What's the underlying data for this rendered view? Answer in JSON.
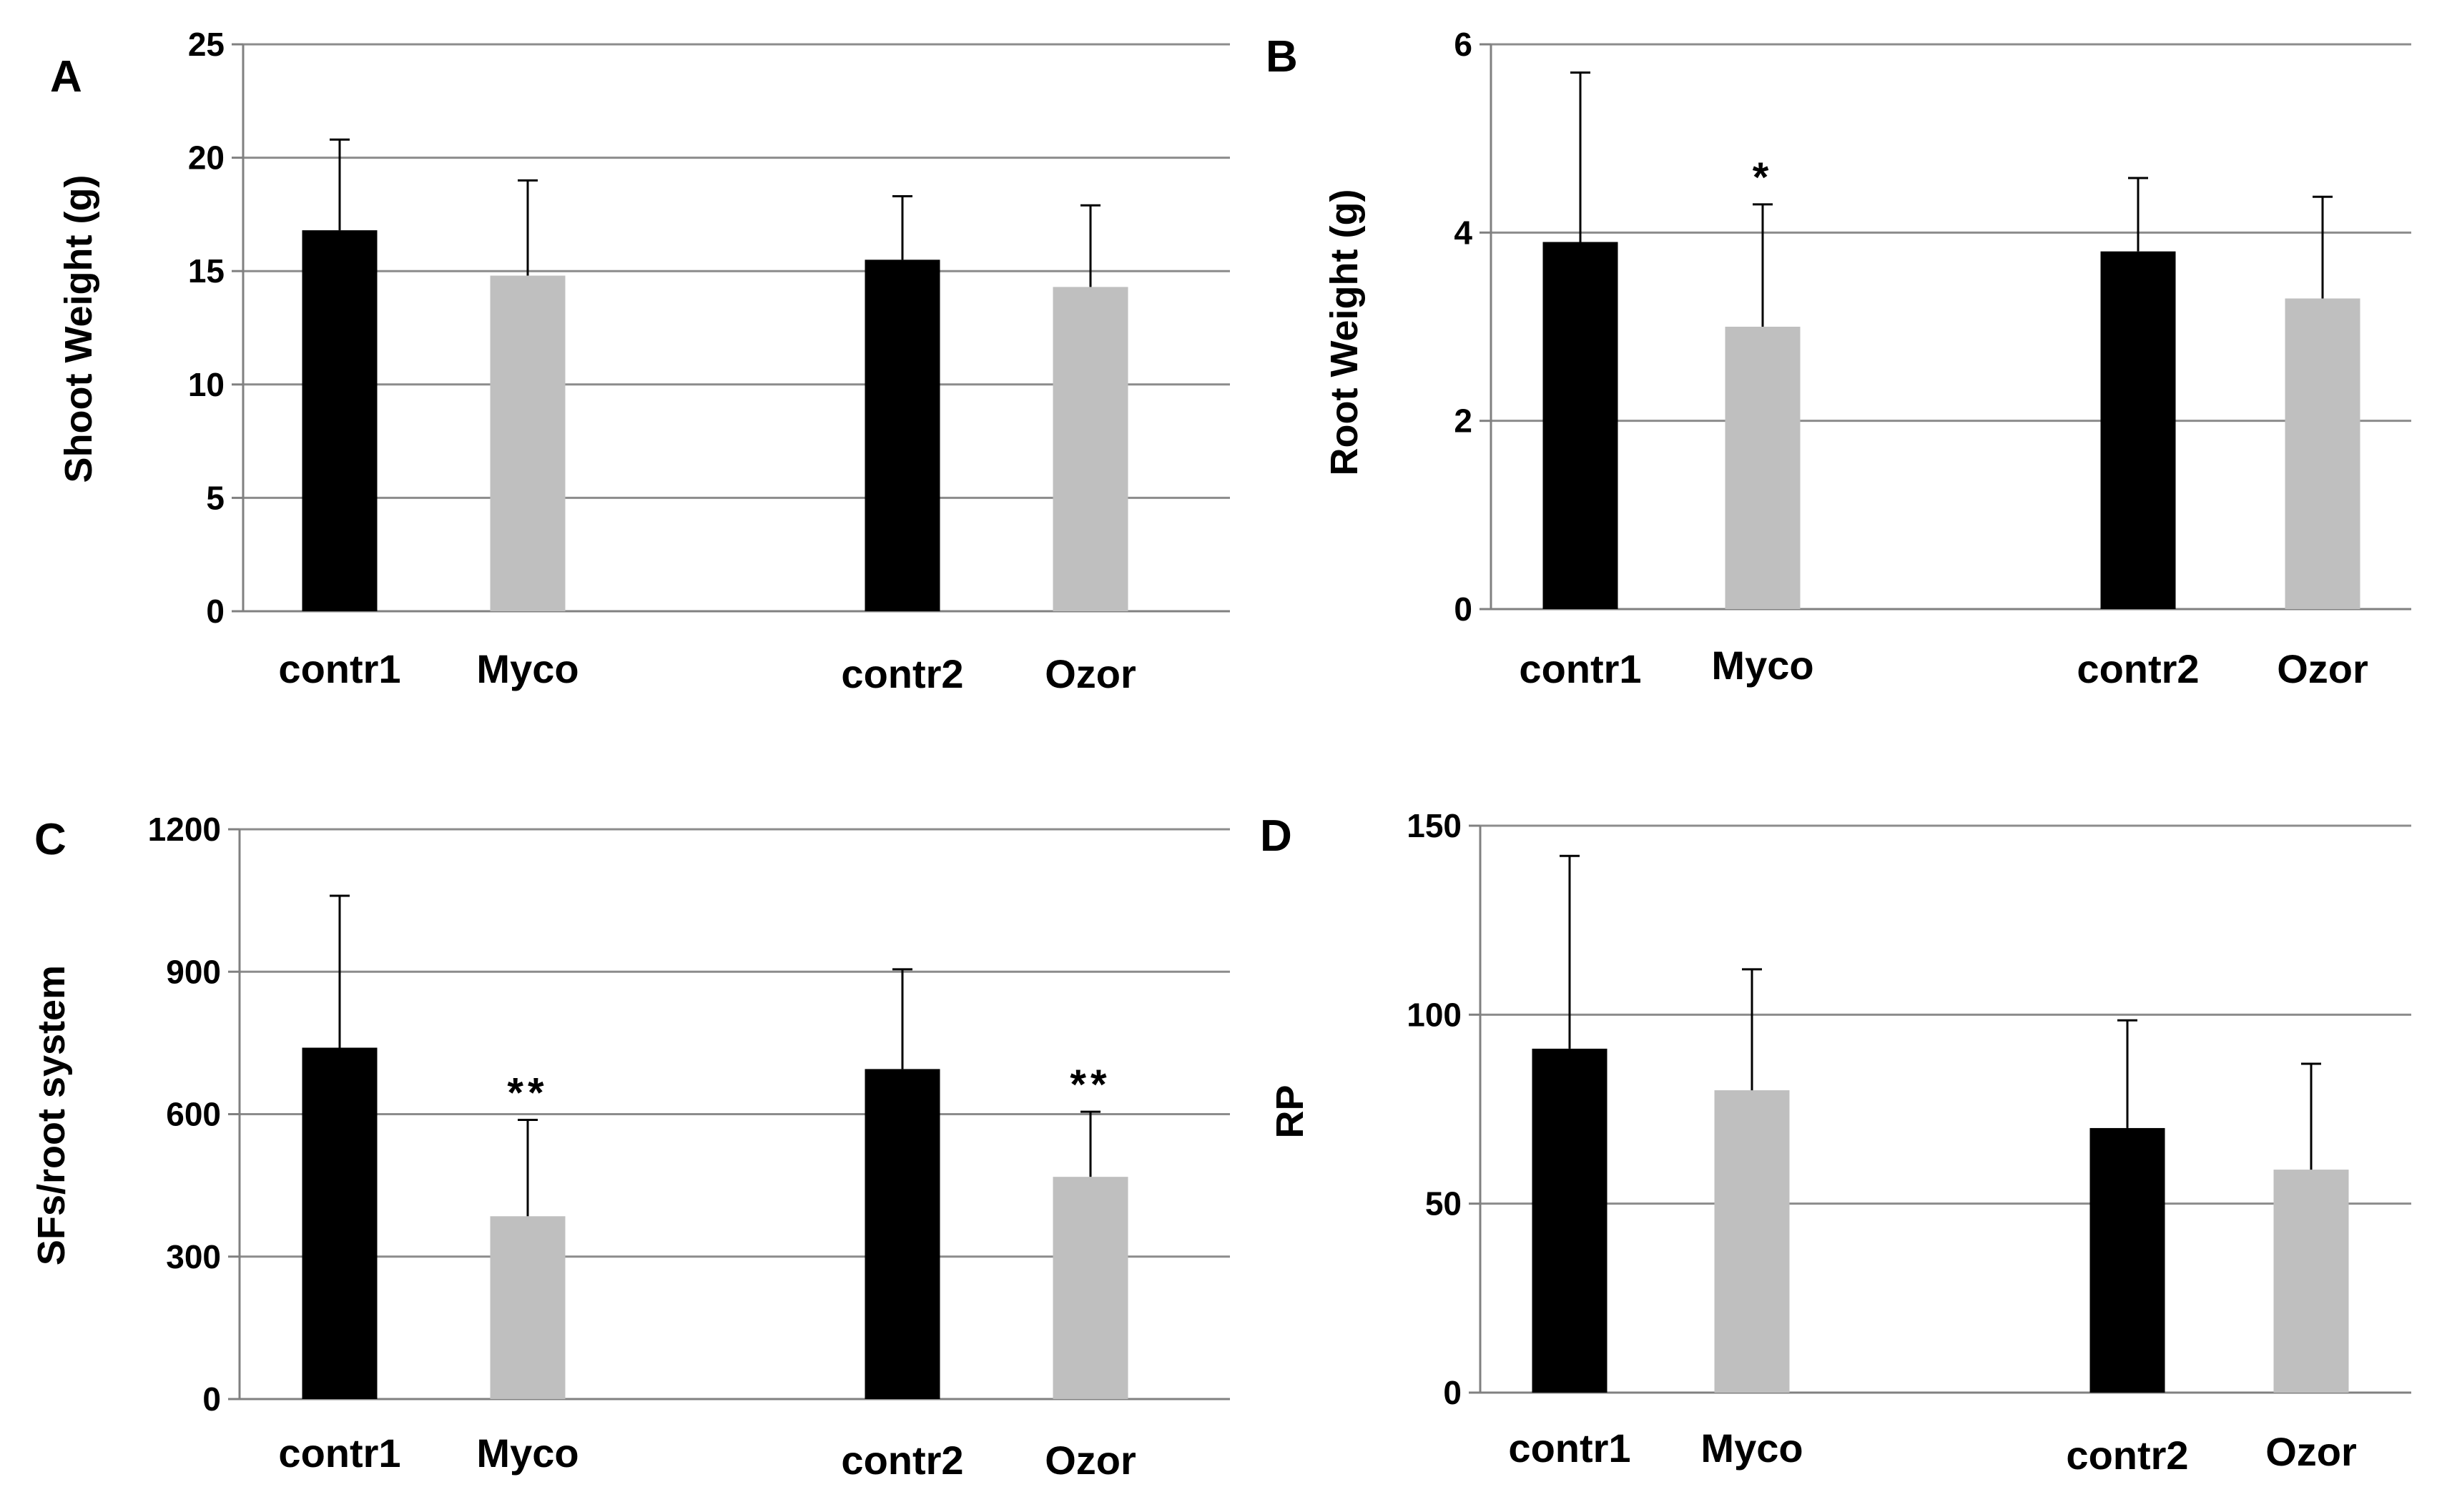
{
  "chart_data": [
    {
      "type": "bar",
      "panel": "A",
      "ylabel": "Shoot Weight (g)",
      "ylim": [
        0,
        25
      ],
      "yticks": [
        0,
        5,
        10,
        15,
        20,
        25
      ],
      "grid": true,
      "categories": [
        "contr1",
        "Myco",
        "contr2",
        "Ozor"
      ],
      "values": [
        16.8,
        14.8,
        15.5,
        14.3
      ],
      "errors": [
        4.0,
        4.2,
        2.8,
        3.6
      ],
      "significance": [
        "",
        "",
        "",
        ""
      ],
      "colors": [
        "#000000",
        "#bfbfbf",
        "#000000",
        "#bfbfbf"
      ]
    },
    {
      "type": "bar",
      "panel": "B",
      "ylabel": "Root Weight (g)",
      "ylim": [
        0,
        6
      ],
      "yticks": [
        0,
        2,
        4,
        6
      ],
      "grid": true,
      "categories": [
        "contr1",
        "Myco",
        "contr2",
        "Ozor"
      ],
      "values": [
        3.9,
        3.0,
        3.8,
        3.3
      ],
      "errors": [
        1.8,
        1.3,
        0.78,
        1.08
      ],
      "significance": [
        "",
        "*",
        "",
        ""
      ],
      "colors": [
        "#000000",
        "#bfbfbf",
        "#000000",
        "#bfbfbf"
      ]
    },
    {
      "type": "bar",
      "panel": "C",
      "ylabel": "SFs/root system",
      "ylim": [
        0,
        1200
      ],
      "yticks": [
        0,
        300,
        600,
        900,
        1200
      ],
      "grid": true,
      "categories": [
        "contr1",
        "Myco",
        "contr2",
        "Ozor"
      ],
      "values": [
        740,
        385,
        695,
        468
      ],
      "errors": [
        320,
        203,
        210,
        137
      ],
      "significance": [
        "",
        "**",
        "",
        "**"
      ],
      "colors": [
        "#000000",
        "#bfbfbf",
        "#000000",
        "#bfbfbf"
      ]
    },
    {
      "type": "bar",
      "panel": "D",
      "ylabel": "RP",
      "ylim": [
        0,
        150
      ],
      "yticks": [
        0,
        50,
        100,
        150
      ],
      "grid": true,
      "categories": [
        "contr1",
        "Myco",
        "contr2",
        "Ozor"
      ],
      "values": [
        91,
        80,
        70,
        59
      ],
      "errors": [
        51,
        32,
        28.5,
        28
      ],
      "significance": [
        "",
        "",
        "",
        ""
      ],
      "colors": [
        "#000000",
        "#bfbfbf",
        "#000000",
        "#bfbfbf"
      ]
    }
  ]
}
